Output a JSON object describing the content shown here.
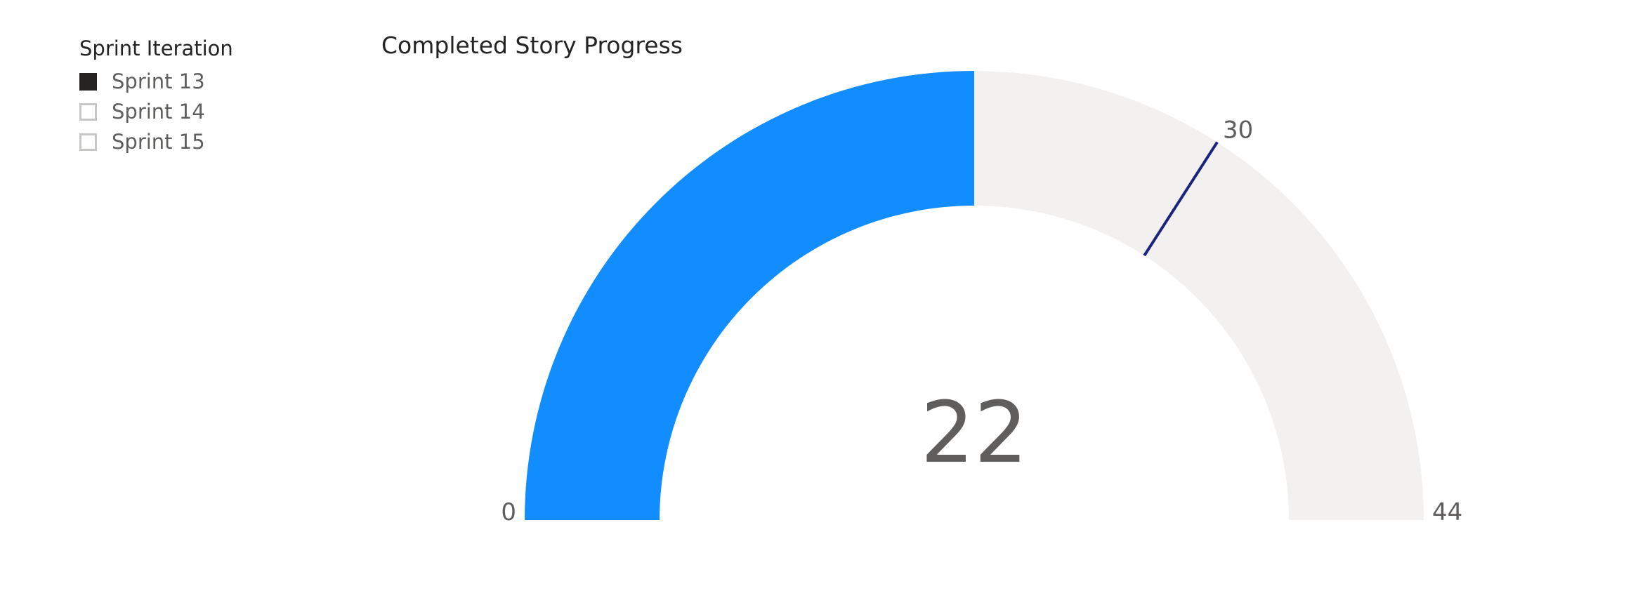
{
  "slicer": {
    "title": "Sprint Iteration",
    "items": [
      {
        "label": "Sprint 13",
        "checked": true
      },
      {
        "label": "Sprint 14",
        "checked": false
      },
      {
        "label": "Sprint 15",
        "checked": false
      }
    ]
  },
  "chart_data": {
    "type": "gauge",
    "title": "Completed Story Progress",
    "value": 22,
    "min": 0,
    "max": 44,
    "target": 30,
    "value_label": "22",
    "min_label": "0",
    "max_label": "44",
    "target_label": "30",
    "colors": {
      "fill": "#118DFF",
      "track": "#F2F1EF",
      "target": "#1A237E",
      "callout": "#605E5C",
      "axis_label": "#605E5C"
    }
  }
}
